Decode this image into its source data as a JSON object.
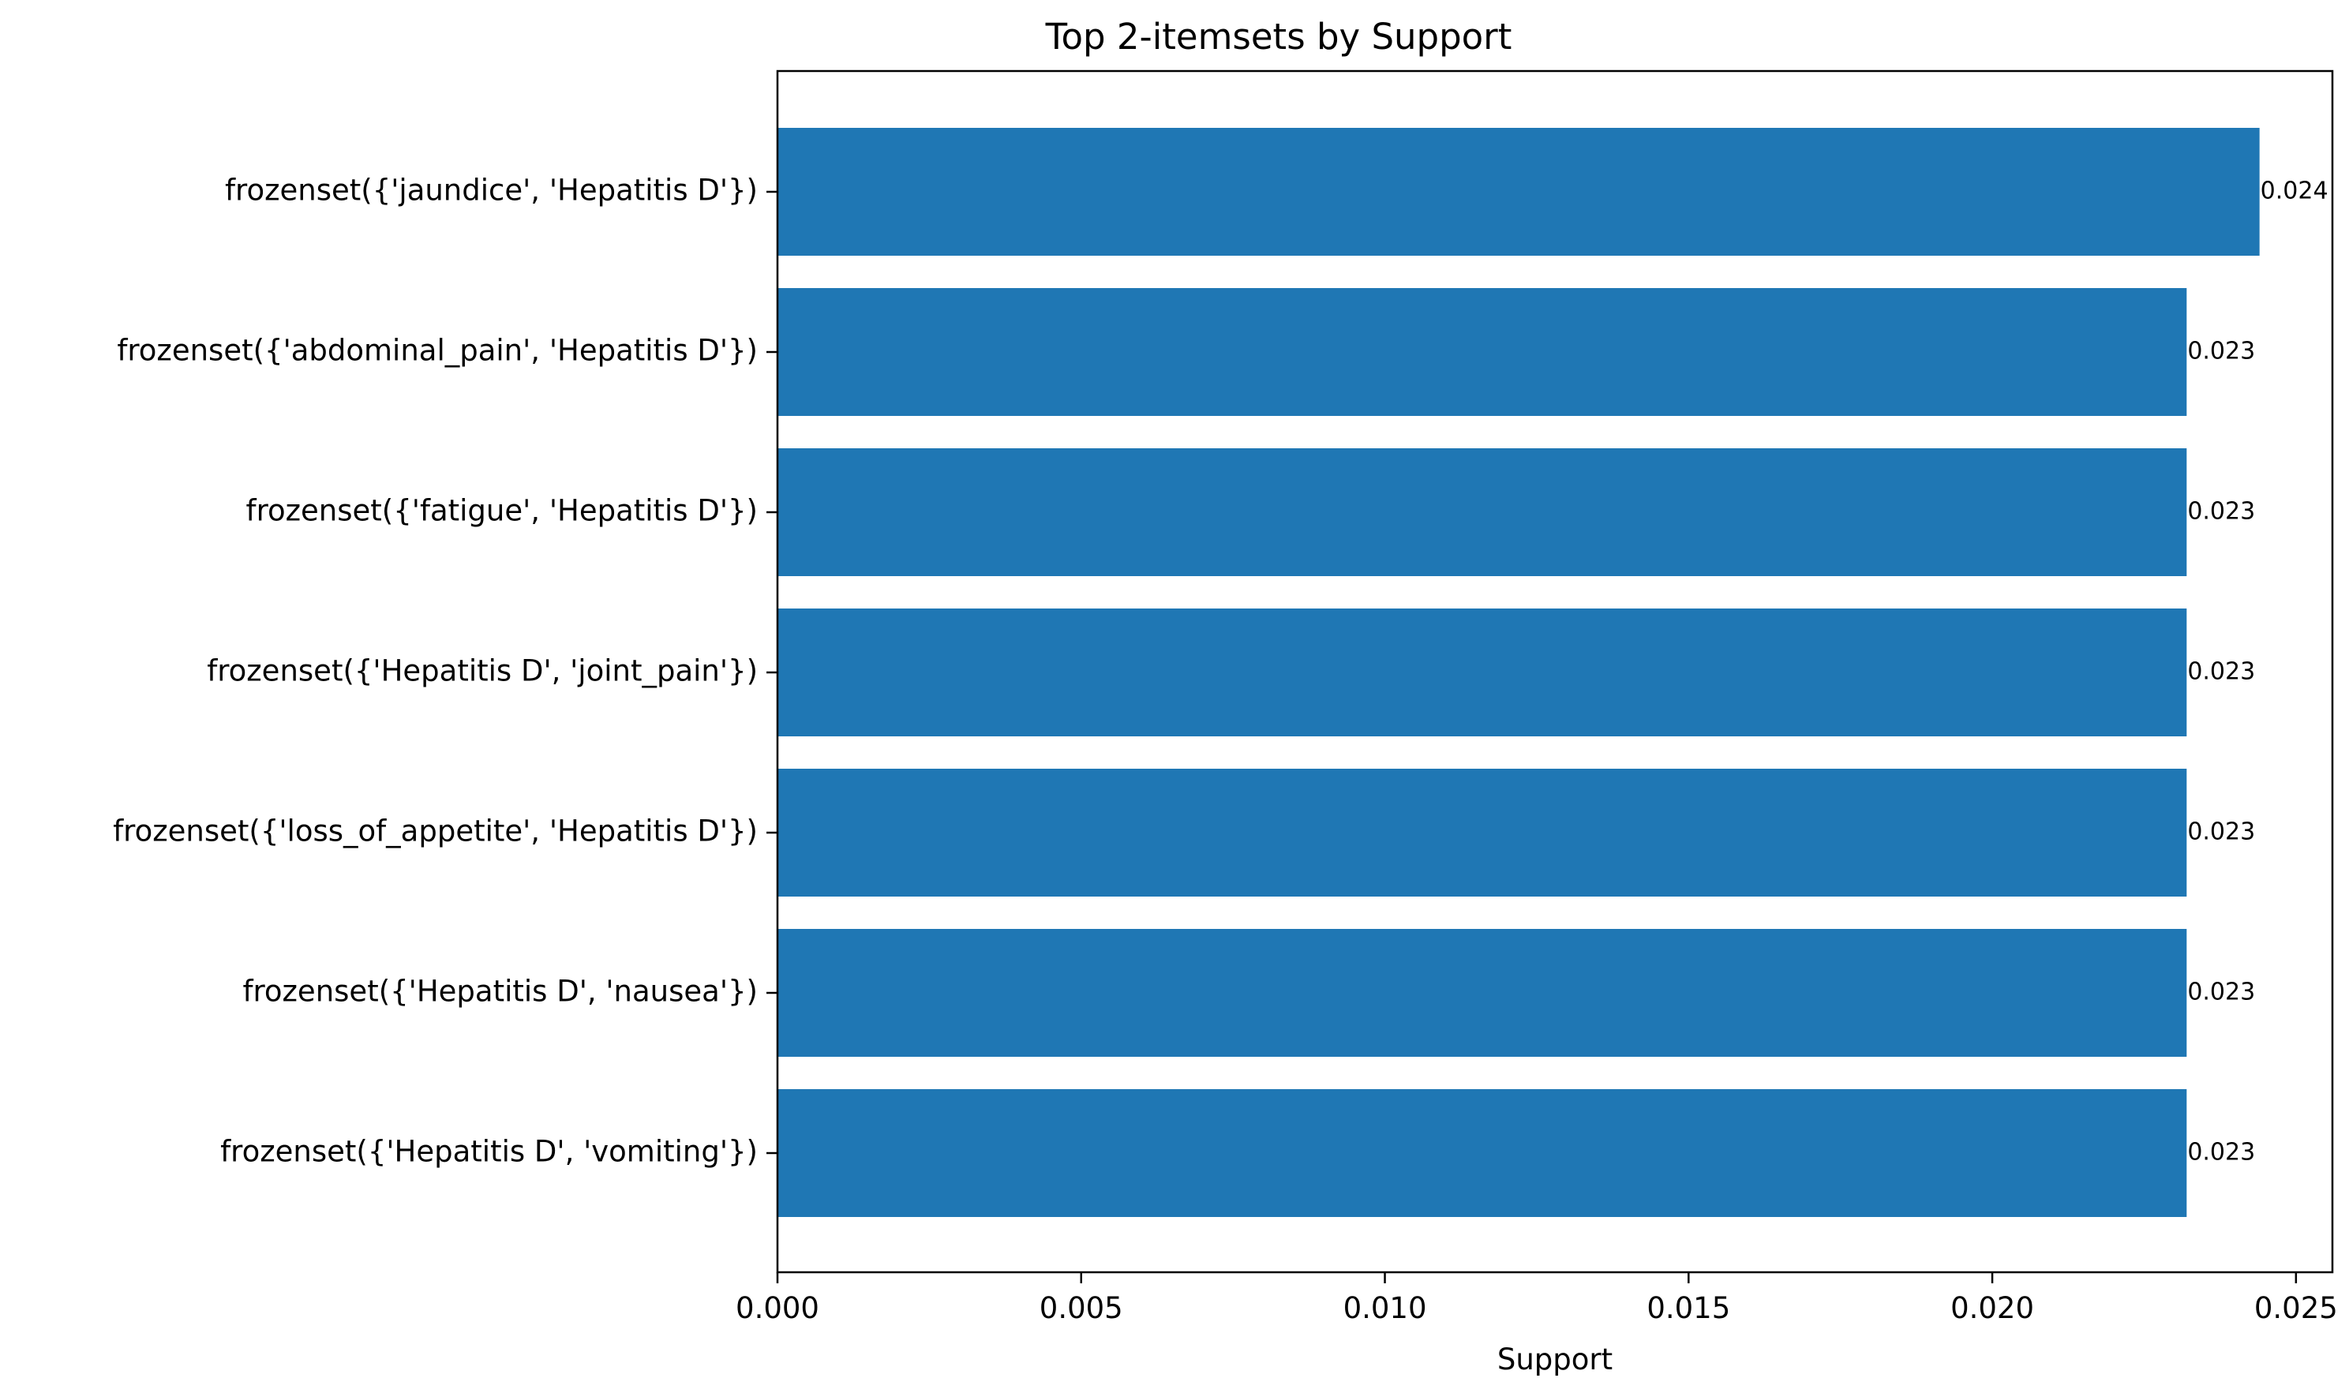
{
  "chart_data": {
    "type": "bar",
    "orientation": "horizontal",
    "title": "Top 2-itemsets by Support",
    "xlabel": "Support",
    "ylabel": "",
    "xlim": [
      0,
      0.0256
    ],
    "x_ticks": [
      "0.000",
      "0.005",
      "0.010",
      "0.015",
      "0.020",
      "0.025"
    ],
    "x_tick_values": [
      0,
      0.005,
      0.01,
      0.015,
      0.02,
      0.025
    ],
    "grid": false,
    "categories": [
      "frozenset({'jaundice', 'Hepatitis D'})",
      "frozenset({'abdominal_pain', 'Hepatitis D'})",
      "frozenset({'fatigue', 'Hepatitis D'})",
      "frozenset({'Hepatitis D', 'joint_pain'})",
      "frozenset({'loss_of_appetite', 'Hepatitis D'})",
      "frozenset({'Hepatitis D', 'nausea'})",
      "frozenset({'Hepatitis D', 'vomiting'})"
    ],
    "values": [
      0.0244,
      0.0232,
      0.0232,
      0.0232,
      0.0232,
      0.0232,
      0.0232
    ],
    "value_labels": [
      "0.024",
      "0.023",
      "0.023",
      "0.023",
      "0.023",
      "0.023",
      "0.023"
    ],
    "bar_color": "#1f77b4"
  }
}
